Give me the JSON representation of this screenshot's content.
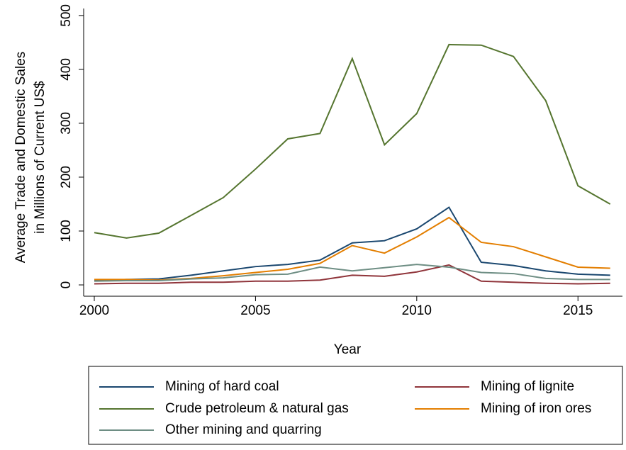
{
  "chart_data": {
    "type": "line",
    "xlabel": "Year",
    "ylabel": [
      "Average Trade and Domestic Sales",
      "in Millions of Current US$"
    ],
    "x": [
      2000,
      2001,
      2002,
      2003,
      2004,
      2005,
      2006,
      2007,
      2008,
      2009,
      2010,
      2011,
      2012,
      2013,
      2014,
      2015,
      2016
    ],
    "series": [
      {
        "name": "Mining of hard coal",
        "color": "#1a476f",
        "values": [
          8,
          10,
          11,
          18,
          26,
          34,
          38,
          46,
          78,
          82,
          104,
          144,
          42,
          36,
          26,
          20,
          18
        ]
      },
      {
        "name": "Mining of lignite",
        "color": "#90353b",
        "values": [
          2,
          3,
          3,
          5,
          5,
          7,
          7,
          9,
          18,
          16,
          24,
          37,
          7,
          5,
          3,
          2,
          3
        ]
      },
      {
        "name": "Crude petroleum & natural gas",
        "color": "#55752f",
        "values": [
          97,
          87,
          96,
          129,
          162,
          215,
          271,
          281,
          420,
          260,
          318,
          446,
          445,
          424,
          342,
          184,
          150
        ]
      },
      {
        "name": "Mining of iron ores",
        "color": "#e37e00",
        "values": [
          10,
          10,
          9,
          12,
          17,
          23,
          29,
          40,
          73,
          59,
          89,
          125,
          79,
          71,
          52,
          33,
          31
        ]
      },
      {
        "name": "Other mining and quarring",
        "color": "#6e8e84",
        "values": [
          7,
          8,
          8,
          11,
          13,
          19,
          20,
          33,
          26,
          32,
          38,
          33,
          23,
          21,
          12,
          10,
          10
        ]
      }
    ],
    "xlim": [
      1999.67,
      2016.38
    ],
    "xticks": [
      2000,
      2005,
      2010,
      2015
    ],
    "ylim": [
      -21,
      513
    ],
    "yticks": [
      0,
      100,
      200,
      300,
      400,
      500
    ],
    "grid": false
  }
}
